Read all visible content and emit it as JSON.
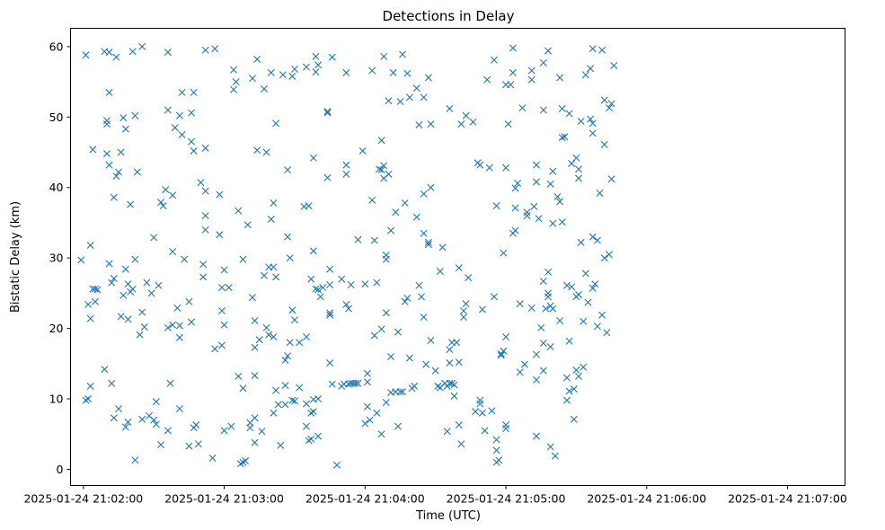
{
  "chart_data": {
    "type": "scatter",
    "title": "Detections in Delay",
    "xlabel": "Time (UTC)",
    "ylabel": "Bistatic Delay (km)",
    "marker": "x",
    "color": "#1f77b4",
    "grid": false,
    "x_unit": "seconds after 2025-01-24 21:02:00",
    "xlim": [
      -5.5,
      324.5
    ],
    "ylim": [
      -2.3,
      62.6
    ],
    "x_ticks": [
      {
        "value": 0,
        "label": "2025-01-24 21:02:00"
      },
      {
        "value": 60,
        "label": "2025-01-24 21:03:00"
      },
      {
        "value": 120,
        "label": "2025-01-24 21:04:00"
      },
      {
        "value": 180,
        "label": "2025-01-24 21:05:00"
      },
      {
        "value": 240,
        "label": "2025-01-24 21:06:00"
      },
      {
        "value": 300,
        "label": "2025-01-24 21:07:00"
      }
    ],
    "y_ticks": [
      {
        "value": 0,
        "label": "0"
      },
      {
        "value": 10,
        "label": "10"
      },
      {
        "value": 20,
        "label": "20"
      },
      {
        "value": 30,
        "label": "30"
      },
      {
        "value": 40,
        "label": "40"
      },
      {
        "value": 50,
        "label": "50"
      },
      {
        "value": 60,
        "label": "60"
      }
    ],
    "points": [
      [
        -1,
        29.7
      ],
      [
        1,
        58.8
      ],
      [
        1,
        9.8
      ],
      [
        2,
        23.4
      ],
      [
        2,
        10
      ],
      [
        3,
        31.8
      ],
      [
        3,
        21.4
      ],
      [
        3,
        11.8
      ],
      [
        4,
        45.4
      ],
      [
        4,
        25.6
      ],
      [
        5,
        23.8
      ],
      [
        5,
        25.6
      ],
      [
        6,
        25.5
      ],
      [
        9,
        59.3
      ],
      [
        9,
        14.2
      ],
      [
        10,
        49
      ],
      [
        10,
        49.5
      ],
      [
        10,
        44.8
      ],
      [
        11,
        59.2
      ],
      [
        11,
        53.5
      ],
      [
        11,
        29.2
      ],
      [
        11,
        43.2
      ],
      [
        12,
        26.5
      ],
      [
        12,
        12.2
      ],
      [
        13,
        27.1
      ],
      [
        13,
        38.6
      ],
      [
        13,
        7.3
      ],
      [
        14,
        58.5
      ],
      [
        14,
        41.6
      ],
      [
        15,
        42.2
      ],
      [
        15,
        8.6
      ],
      [
        16,
        45
      ],
      [
        16,
        21.7
      ],
      [
        17,
        49.9
      ],
      [
        17,
        24.7
      ],
      [
        18,
        48.3
      ],
      [
        18,
        28.4
      ],
      [
        18,
        6
      ],
      [
        19,
        26.3
      ],
      [
        19,
        21.3
      ],
      [
        19,
        6.7
      ],
      [
        20,
        37.6
      ],
      [
        20,
        25.2
      ],
      [
        21,
        59.3
      ],
      [
        21,
        25.6
      ],
      [
        22,
        50.2
      ],
      [
        22,
        29.8
      ],
      [
        22,
        1.3
      ],
      [
        23,
        42.2
      ],
      [
        24,
        19.1
      ],
      [
        25,
        60
      ],
      [
        25,
        22.3
      ],
      [
        25,
        7.1
      ],
      [
        26,
        20.2
      ],
      [
        27,
        26.5
      ],
      [
        28,
        7.6
      ],
      [
        29,
        25
      ],
      [
        30,
        32.9
      ],
      [
        30,
        7
      ],
      [
        31,
        9.6
      ],
      [
        31,
        6.4
      ],
      [
        32,
        26.1
      ],
      [
        33,
        37.9
      ],
      [
        33,
        3.5
      ],
      [
        34,
        37.4
      ],
      [
        35,
        39.7
      ],
      [
        36,
        59.2
      ],
      [
        36,
        51
      ],
      [
        36,
        20.1
      ],
      [
        36,
        5.5
      ],
      [
        37,
        12.2
      ],
      [
        38,
        38.9
      ],
      [
        38,
        30.9
      ],
      [
        38,
        20.5
      ],
      [
        39,
        48.5
      ],
      [
        40,
        22.9
      ],
      [
        41,
        50.2
      ],
      [
        41,
        20.4
      ],
      [
        41,
        18.7
      ],
      [
        41,
        8.6
      ],
      [
        42,
        53.5
      ],
      [
        42,
        47.5
      ],
      [
        43,
        29.8
      ],
      [
        45,
        23.8
      ],
      [
        45,
        3.3
      ],
      [
        46,
        50.6
      ],
      [
        46,
        46.5
      ],
      [
        46,
        20.9
      ],
      [
        47,
        45.2
      ],
      [
        47,
        53.5
      ],
      [
        47,
        5.9
      ],
      [
        48,
        6.3
      ],
      [
        49,
        3.6
      ],
      [
        50,
        40.7
      ],
      [
        51,
        29.1
      ],
      [
        51,
        27.3
      ],
      [
        52,
        59.5
      ],
      [
        52,
        39.5
      ],
      [
        52,
        36
      ],
      [
        52,
        34
      ],
      [
        52,
        45.6
      ],
      [
        55,
        1.6
      ],
      [
        56,
        17.1
      ],
      [
        56,
        59.7
      ],
      [
        58,
        39
      ],
      [
        58,
        33.3
      ],
      [
        59,
        25.8
      ],
      [
        59,
        22.5
      ],
      [
        59,
        17.6
      ],
      [
        60,
        20.5
      ],
      [
        60,
        28.3
      ],
      [
        60,
        5.5
      ],
      [
        62,
        25.8
      ],
      [
        63,
        6.1
      ],
      [
        64,
        56.7
      ],
      [
        64,
        53.9
      ],
      [
        65,
        55
      ],
      [
        66,
        36.7
      ],
      [
        66,
        13.2
      ],
      [
        67,
        0.8
      ],
      [
        68,
        11.5
      ],
      [
        68,
        1
      ],
      [
        68,
        29.8
      ],
      [
        69,
        1.2
      ],
      [
        70,
        34.7
      ],
      [
        71,
        5.9
      ],
      [
        71,
        6.6
      ],
      [
        72,
        55.5
      ],
      [
        72,
        24.4
      ],
      [
        73,
        13.3
      ],
      [
        73,
        7.3
      ],
      [
        73,
        3.8
      ],
      [
        73,
        21.1
      ],
      [
        73,
        17.3
      ],
      [
        74,
        45.3
      ],
      [
        74,
        58.2
      ],
      [
        75,
        18.4
      ],
      [
        76,
        5.4
      ],
      [
        77,
        54
      ],
      [
        77,
        27.5
      ],
      [
        78,
        20.1
      ],
      [
        78,
        45
      ],
      [
        79,
        19.1
      ],
      [
        79,
        28.7
      ],
      [
        80,
        35.5
      ],
      [
        80,
        56.3
      ],
      [
        81,
        37.8
      ],
      [
        81,
        8
      ],
      [
        81,
        18.8
      ],
      [
        81,
        28.7
      ],
      [
        82,
        49.1
      ],
      [
        82,
        27.3
      ],
      [
        82,
        11.2
      ],
      [
        83,
        9.2
      ],
      [
        84,
        3.4
      ],
      [
        85,
        56
      ],
      [
        86,
        9.2
      ],
      [
        86,
        11.9
      ],
      [
        86,
        15.5
      ],
      [
        87,
        16.1
      ],
      [
        87,
        42.5
      ],
      [
        87,
        33
      ],
      [
        88,
        30
      ],
      [
        88,
        18
      ],
      [
        89,
        55.8
      ],
      [
        89,
        9.8
      ],
      [
        89,
        22.6
      ],
      [
        90,
        56.8
      ],
      [
        90,
        9.7
      ],
      [
        90,
        21.2
      ],
      [
        92,
        11.6
      ],
      [
        92,
        18
      ],
      [
        94,
        37.3
      ],
      [
        95,
        57.1
      ],
      [
        95,
        9.3
      ],
      [
        95,
        6.1
      ],
      [
        95,
        18.8
      ],
      [
        96,
        4.1
      ],
      [
        96,
        37.4
      ],
      [
        97,
        27
      ],
      [
        97,
        8
      ],
      [
        97,
        4.3
      ],
      [
        98,
        44.2
      ],
      [
        98,
        31
      ],
      [
        98,
        9.9
      ],
      [
        98,
        8.2
      ],
      [
        99,
        58.6
      ],
      [
        99,
        56.4
      ],
      [
        99,
        25.6
      ],
      [
        100,
        57.4
      ],
      [
        100,
        25.5
      ],
      [
        100,
        4.7
      ],
      [
        100,
        10
      ],
      [
        101,
        24.5
      ],
      [
        102,
        25.8
      ],
      [
        104,
        50.6
      ],
      [
        104,
        50.8
      ],
      [
        104,
        41.4
      ],
      [
        105,
        28.4
      ],
      [
        105,
        26.2
      ],
      [
        105,
        22.2
      ],
      [
        105,
        21.9
      ],
      [
        105,
        15.1
      ],
      [
        106,
        58.5
      ],
      [
        106,
        12.1
      ],
      [
        108,
        0.6
      ],
      [
        110,
        11.8
      ],
      [
        110,
        27
      ],
      [
        111,
        12.1
      ],
      [
        112,
        56.3
      ],
      [
        112,
        41.9
      ],
      [
        112,
        43.2
      ],
      [
        112,
        23.4
      ],
      [
        113,
        22.8
      ],
      [
        113,
        12.1
      ],
      [
        114,
        12.2
      ],
      [
        114,
        26.2
      ],
      [
        115,
        12.2
      ],
      [
        116,
        12.2
      ],
      [
        117,
        12.2
      ],
      [
        117,
        32.6
      ],
      [
        119,
        45.2
      ],
      [
        120,
        6.5
      ],
      [
        120,
        26.3
      ],
      [
        121,
        12.4
      ],
      [
        121,
        13.6
      ],
      [
        121,
        8.9
      ],
      [
        122,
        7
      ],
      [
        123,
        56.6
      ],
      [
        123,
        38.2
      ],
      [
        124,
        32.5
      ],
      [
        124,
        19
      ],
      [
        125,
        26.5
      ],
      [
        125,
        8
      ],
      [
        126,
        42.6
      ],
      [
        127,
        42.5
      ],
      [
        127,
        46.7
      ],
      [
        127,
        19.9
      ],
      [
        127,
        5
      ],
      [
        128,
        43.1
      ],
      [
        128,
        41.3
      ],
      [
        128,
        58.6
      ],
      [
        129,
        30.4
      ],
      [
        129,
        29.8
      ],
      [
        129,
        22.2
      ],
      [
        129,
        9.5
      ],
      [
        130,
        52.3
      ],
      [
        130,
        41.9
      ],
      [
        131,
        33.9
      ],
      [
        131,
        16
      ],
      [
        131,
        10.9
      ],
      [
        132,
        56.3
      ],
      [
        133,
        11
      ],
      [
        133,
        36.5
      ],
      [
        133,
        11
      ],
      [
        134,
        6.1
      ],
      [
        134,
        19.5
      ],
      [
        135,
        11
      ],
      [
        135,
        52.2
      ],
      [
        136,
        58.9
      ],
      [
        136,
        11
      ],
      [
        137,
        37.8
      ],
      [
        137,
        23.8
      ],
      [
        138,
        56.2
      ],
      [
        138,
        24.3
      ],
      [
        139,
        52.8
      ],
      [
        139,
        15.8
      ],
      [
        140,
        11.5
      ],
      [
        141,
        11.8
      ],
      [
        142,
        54.1
      ],
      [
        142,
        35.8
      ],
      [
        143,
        48.9
      ],
      [
        143,
        26.1
      ],
      [
        144,
        24.5
      ],
      [
        145,
        52.8
      ],
      [
        145,
        39.1
      ],
      [
        145,
        33.5
      ],
      [
        145,
        21.6
      ],
      [
        146,
        14.9
      ],
      [
        147,
        55.6
      ],
      [
        147,
        31.9
      ],
      [
        147,
        32.2
      ],
      [
        148,
        40
      ],
      [
        148,
        18.3
      ],
      [
        148,
        49
      ],
      [
        150,
        14
      ],
      [
        151,
        11.8
      ],
      [
        152,
        11.6
      ],
      [
        152,
        28.1
      ],
      [
        153,
        31.5
      ],
      [
        154,
        12.2
      ],
      [
        155,
        11.8
      ],
      [
        155,
        5.4
      ],
      [
        156,
        12.2
      ],
      [
        156,
        51.2
      ],
      [
        156,
        17
      ],
      [
        156,
        15.1
      ],
      [
        157,
        12.2
      ],
      [
        157,
        18
      ],
      [
        158,
        12
      ],
      [
        158,
        10.4
      ],
      [
        159,
        18
      ],
      [
        160,
        28.6
      ],
      [
        160,
        15.2
      ],
      [
        160,
        6.3
      ],
      [
        161,
        49
      ],
      [
        161,
        3.6
      ],
      [
        162,
        22.5
      ],
      [
        162,
        21.6
      ],
      [
        163,
        50.2
      ],
      [
        163,
        23.5
      ],
      [
        164,
        27.2
      ],
      [
        166,
        49.3
      ],
      [
        167,
        8.2
      ],
      [
        168,
        43.5
      ],
      [
        169,
        43.2
      ],
      [
        169,
        9.8
      ],
      [
        169,
        9.3
      ],
      [
        170,
        22.7
      ],
      [
        170,
        8
      ],
      [
        171,
        5.5
      ],
      [
        172,
        55.3
      ],
      [
        173,
        42.8
      ],
      [
        174,
        8.3
      ],
      [
        175,
        58.1
      ],
      [
        175,
        24.5
      ],
      [
        176,
        37.4
      ],
      [
        176,
        4.2
      ],
      [
        176,
        2.7
      ],
      [
        176,
        1
      ],
      [
        177,
        1.3
      ],
      [
        178,
        16.4
      ],
      [
        178,
        16.2
      ],
      [
        179,
        30.7
      ],
      [
        179,
        16.8
      ],
      [
        180,
        42.8
      ],
      [
        180,
        54.6
      ],
      [
        180,
        6.3
      ],
      [
        180,
        5.8
      ],
      [
        180,
        18.8
      ],
      [
        181,
        49
      ],
      [
        182,
        54.6
      ],
      [
        183,
        56.3
      ],
      [
        183,
        59.8
      ],
      [
        183,
        33.5
      ],
      [
        184,
        33.9
      ],
      [
        184,
        39.9
      ],
      [
        184,
        37.1
      ],
      [
        185,
        40.6
      ],
      [
        186,
        23.5
      ],
      [
        186,
        13.8
      ],
      [
        187,
        51.3
      ],
      [
        188,
        14.9
      ],
      [
        189,
        36.5
      ],
      [
        189,
        36
      ],
      [
        191,
        56.6
      ],
      [
        191,
        55.3
      ],
      [
        191,
        22.9
      ],
      [
        192,
        37.3
      ],
      [
        193,
        40.8
      ],
      [
        193,
        43.2
      ],
      [
        193,
        16.3
      ],
      [
        193,
        12.7
      ],
      [
        193,
        4.7
      ],
      [
        194,
        35.6
      ],
      [
        195,
        20.1
      ],
      [
        196,
        57.7
      ],
      [
        196,
        51
      ],
      [
        196,
        26.7
      ],
      [
        196,
        14
      ],
      [
        196,
        17.9
      ],
      [
        197,
        22.8
      ],
      [
        198,
        59.4
      ],
      [
        198,
        28
      ],
      [
        198,
        25
      ],
      [
        198,
        24.5
      ],
      [
        199,
        40.5
      ],
      [
        199,
        23.2
      ],
      [
        199,
        17.4
      ],
      [
        199,
        3.2
      ],
      [
        200,
        42.3
      ],
      [
        200,
        34.9
      ],
      [
        200,
        22.8
      ],
      [
        201,
        1.9
      ],
      [
        202,
        38.7
      ],
      [
        203,
        55.6
      ],
      [
        203,
        38
      ],
      [
        203,
        21.1
      ],
      [
        204,
        35.1
      ],
      [
        204,
        51.2
      ],
      [
        204,
        47.1
      ],
      [
        205,
        47.2
      ],
      [
        206,
        26.1
      ],
      [
        206,
        13
      ],
      [
        206,
        9.8
      ],
      [
        207,
        50.5
      ],
      [
        207,
        18.2
      ],
      [
        207,
        11.1
      ],
      [
        208,
        43.4
      ],
      [
        208,
        25.9
      ],
      [
        209,
        7.1
      ],
      [
        209,
        11.4
      ],
      [
        210,
        44.2
      ],
      [
        210,
        24.5
      ],
      [
        210,
        14.1
      ],
      [
        211,
        42.6
      ],
      [
        211,
        41.3
      ],
      [
        211,
        24.8
      ],
      [
        211,
        13.2
      ],
      [
        212,
        49.4
      ],
      [
        212,
        32.2
      ],
      [
        213,
        14.5
      ],
      [
        213,
        21
      ],
      [
        214,
        56
      ],
      [
        214,
        27.8
      ],
      [
        215,
        23.7
      ],
      [
        216,
        49.7
      ],
      [
        216,
        56.9
      ],
      [
        217,
        59.7
      ],
      [
        217,
        49.1
      ],
      [
        217,
        47.7
      ],
      [
        217,
        33
      ],
      [
        217,
        25.7
      ],
      [
        218,
        26.3
      ],
      [
        219,
        32.5
      ],
      [
        219,
        20.3
      ],
      [
        220,
        39.2
      ],
      [
        221,
        59.5
      ],
      [
        221,
        21.9
      ],
      [
        222,
        52.4
      ],
      [
        222,
        46.1
      ],
      [
        222,
        30
      ],
      [
        223,
        19.4
      ],
      [
        224,
        51.3
      ],
      [
        224,
        30.5
      ],
      [
        225,
        41.2
      ],
      [
        225,
        51.9
      ],
      [
        226,
        57.3
      ]
    ]
  }
}
